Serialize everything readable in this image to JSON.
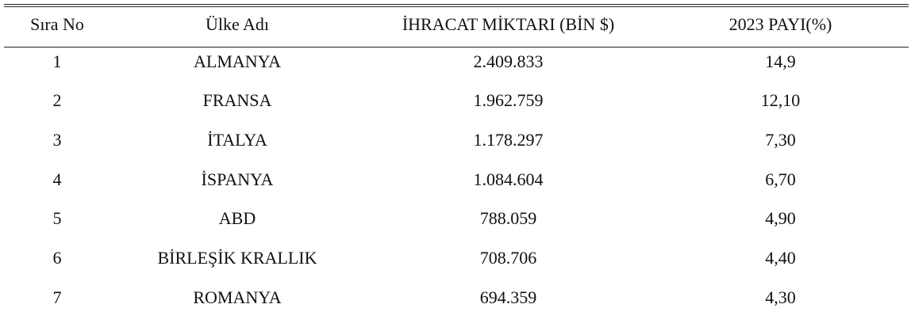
{
  "table": {
    "headers": [
      "Sıra No",
      "Ülke Adı",
      "İHRACAT MİKTARI (BİN $)",
      "2023 PAYI(%)"
    ],
    "rows": [
      [
        "1",
        "ALMANYA",
        "2.409.833",
        "14,9"
      ],
      [
        "2",
        "FRANSA",
        "1.962.759",
        "12,10"
      ],
      [
        "3",
        "İTALYA",
        "1.178.297",
        "7,30"
      ],
      [
        "4",
        "İSPANYA",
        "1.084.604",
        "6,70"
      ],
      [
        "5",
        "ABD",
        "788.059",
        "4,90"
      ],
      [
        "6",
        "BİRLEŞİK KRALLIK",
        "708.706",
        "4,40"
      ],
      [
        "7",
        "ROMANYA",
        "694.359",
        "4,30"
      ]
    ]
  }
}
